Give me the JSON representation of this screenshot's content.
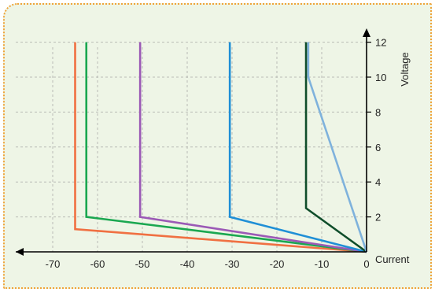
{
  "chart_data": {
    "type": "line",
    "title": "",
    "xlabel": "Current",
    "ylabel": "Voltage",
    "xlim": [
      -75,
      0
    ],
    "ylim": [
      0,
      13
    ],
    "x_ticks": [
      -70,
      -60,
      -50,
      -40,
      -30,
      -20,
      -10,
      0
    ],
    "y_ticks": [
      2,
      4,
      6,
      8,
      10,
      12
    ],
    "grid": true,
    "series": [
      {
        "color": "#f07042",
        "points": [
          [
            0,
            0
          ],
          [
            -65,
            1.3
          ],
          [
            -65,
            12
          ]
        ]
      },
      {
        "color": "#1aa750",
        "points": [
          [
            0,
            0
          ],
          [
            -62.5,
            2
          ],
          [
            -62.5,
            12
          ]
        ]
      },
      {
        "color": "#9b59b6",
        "points": [
          [
            0,
            0
          ],
          [
            -50.5,
            2
          ],
          [
            -50.5,
            12
          ]
        ]
      },
      {
        "color": "#1f8fd6",
        "points": [
          [
            0,
            0
          ],
          [
            -30.5,
            2
          ],
          [
            -30.5,
            12
          ]
        ]
      },
      {
        "color": "#0f4d2a",
        "points": [
          [
            0,
            0
          ],
          [
            -13.5,
            2.5
          ],
          [
            -13.5,
            12
          ]
        ]
      },
      {
        "color": "#7fb2dc",
        "points": [
          [
            0,
            0
          ],
          [
            -13,
            10
          ],
          [
            -13,
            12
          ]
        ]
      }
    ]
  }
}
